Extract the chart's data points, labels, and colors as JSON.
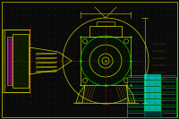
{
  "bg_color": "#0a0a0a",
  "border_color": "#1a3a1a",
  "dot_color": "#1a3a1a",
  "yellow": "#cccc00",
  "bright_yellow": "#ffff00",
  "green": "#00cc00",
  "bright_green": "#00ff00",
  "cyan": "#00ffff",
  "magenta": "#cc00cc",
  "red": "#cc0000",
  "white": "#cccccc",
  "fig_width": 2.0,
  "fig_height": 1.33,
  "dpi": 100
}
